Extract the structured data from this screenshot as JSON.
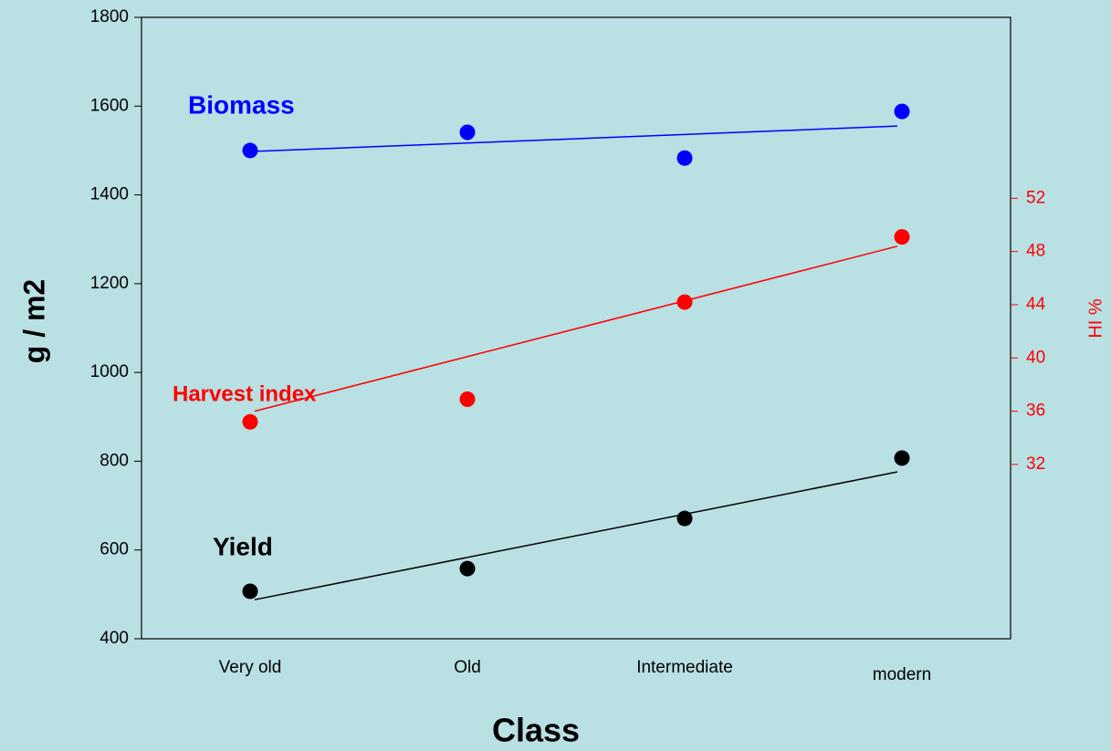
{
  "chart_data": {
    "type": "line",
    "categories": [
      "Very old",
      "Old",
      "Intermediate",
      "modern"
    ],
    "xlabel": "Class",
    "ylabel": "g / m2",
    "y2label": "HI %",
    "ylim": [
      400,
      1800
    ],
    "yticks": [
      400,
      600,
      800,
      1000,
      1200,
      1400,
      1600,
      1800
    ],
    "y2lim": [
      18.9,
      65.6
    ],
    "y2ticks": [
      32,
      36,
      40,
      44,
      48,
      52
    ],
    "y2color": "#ff0000",
    "series": [
      {
        "name": "Biomass",
        "color": "#0000ff",
        "values": [
          1500,
          1541,
          1483,
          1588
        ],
        "trend": [
          1498,
          1555
        ]
      },
      {
        "name": "Harvest index",
        "color": "#ff0000",
        "axis": "y2",
        "values": [
          35.2,
          36.9,
          44.2,
          49.1
        ],
        "trend": [
          36.0,
          48.4
        ]
      },
      {
        "name": "Yield",
        "color": "#000000",
        "values": [
          507,
          558,
          671,
          807
        ],
        "trend": [
          488,
          776
        ]
      }
    ]
  }
}
